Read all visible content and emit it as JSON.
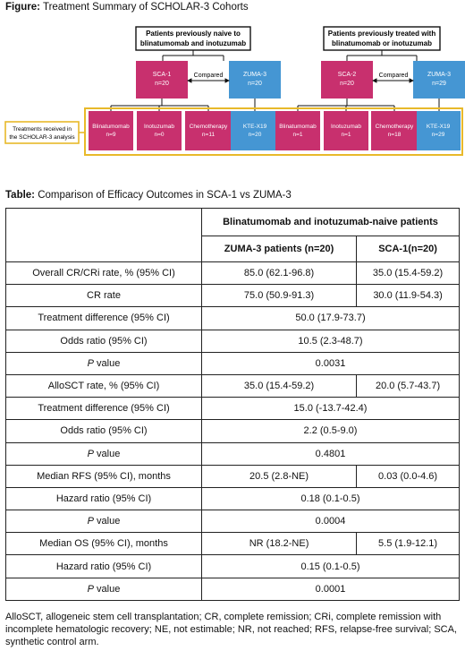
{
  "figure": {
    "caption_label": "Figure:",
    "caption_text": " Treatment Summary of SCHOLAR-3 Cohorts",
    "left_group": [
      "Patients previously naive to",
      "blinatumomab and inotuzumab"
    ],
    "right_group": [
      "Patients previously treated with",
      "blinatumomab or inotuzumab"
    ],
    "compared": "Compared",
    "cohorts": [
      {
        "name": "SCA-1",
        "n": "n=20"
      },
      {
        "name": "ZUMA-3",
        "n": "n=20"
      },
      {
        "name": "SCA-2",
        "n": "n=20"
      },
      {
        "name": "ZUMA-3",
        "n": "n=29"
      }
    ],
    "side_label": [
      "Treatments received in",
      "the SCHOLAR-3 analysis"
    ],
    "treatments": [
      {
        "name": "Blinatumomab",
        "n": "n=9"
      },
      {
        "name": "Inotuzumab",
        "n": "n=0"
      },
      {
        "name": "Chemotherapy",
        "n": "n=11"
      },
      {
        "name": "KTE-X19",
        "n": "n=20"
      },
      {
        "name": "Blinatumomab",
        "n": "n=1"
      },
      {
        "name": "Inotuzumab",
        "n": "n=1"
      },
      {
        "name": "Chemotherapy",
        "n": "n=18"
      },
      {
        "name": "KTE-X19",
        "n": "n=29"
      }
    ],
    "colors": {
      "sca": "#c8306e",
      "zuma": "#4596d3",
      "border": "#e8b92a"
    }
  },
  "table": {
    "caption_label": "Table:",
    "caption_text": " Comparison of Efficacy Outcomes in SCA-1 vs ZUMA-3",
    "group_header": "Blinatumomab and inotuzumab-naive patients",
    "col_zuma": "ZUMA-3 patients (n=20)",
    "col_sca": "SCA-1(n=20)",
    "rows": {
      "overall_label": "Overall CR/CRi rate, % (95% CI)",
      "overall_zuma": "85.0 (62.1-96.8)",
      "overall_sca": "35.0 (15.4-59.2)",
      "cr_label": "CR rate",
      "cr_zuma": "75.0 (50.9-91.3)",
      "cr_sca": "30.0 (11.9-54.3)",
      "td1_label": "Treatment difference (95% CI)",
      "td1_value": "50.0 (17.9-73.7)",
      "or1_label": "Odds ratio (95% CI)",
      "or1_value": "10.5 (2.3-48.7)",
      "p_letter": "P",
      "p_rest": " value",
      "p1_value": "0.0031",
      "allo_label": "AlloSCT rate, % (95% CI)",
      "allo_zuma": "35.0 (15.4-59.2)",
      "allo_sca": "20.0 (5.7-43.7)",
      "td2_label": "Treatment difference (95% CI)",
      "td2_value": "15.0 (-13.7-42.4)",
      "or2_label": "Odds ratio (95% CI)",
      "or2_value": "2.2 (0.5-9.0)",
      "p2_value": "0.4801",
      "rfs_label": "Median RFS (95% CI), months",
      "rfs_zuma": "20.5 (2.8-NE)",
      "rfs_sca": "0.03 (0.0-4.6)",
      "hr1_label": "Hazard ratio (95% CI)",
      "hr1_value": "0.18 (0.1-0.5)",
      "p3_value": "0.0004",
      "os_label": "Median OS (95% CI), months",
      "os_zuma": "NR (18.2-NE)",
      "os_sca": "5.5 (1.9-12.1)",
      "hr2_label": "Hazard ratio (95% CI)",
      "hr2_value": "0.15 (0.1-0.5)",
      "p4_value": "0.0001"
    }
  },
  "footnote": "AlloSCT, allogeneic stem cell transplantation; CR, complete remission; CRi, complete remission with incomplete hematologic recovery; NE, not estimable; NR, not reached; RFS, relapse-free survival; SCA, synthetic control arm."
}
